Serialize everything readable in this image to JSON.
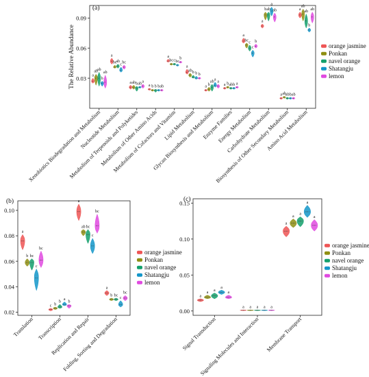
{
  "colors": {
    "orange jasmine": "#ee5555",
    "Ponkan": "#8f8f12",
    "navel orange": "#13a06c",
    "Shatangju": "#1396c9",
    "lemon": "#e04ae0"
  },
  "chart_data": [
    {
      "id": "a",
      "panel_label": "(a)",
      "type": "violin",
      "ylabel": "The Relative Abundance",
      "ylim": [
        0.0,
        0.1025
      ],
      "yticks": [
        "0.03",
        "0.06",
        "0.09"
      ],
      "ytick_values": [
        0.03,
        0.06,
        0.09
      ],
      "legend": [
        "orange jasmine",
        "Ponkan",
        "navel orange",
        "Shatangju",
        "lemon"
      ],
      "legend_position": "right",
      "categories": [
        "Xenobiotics Biodegradation and Metabolism",
        "Nucleotide Metabolism",
        "Metabolism of Terpenoids and Polyketides",
        "Metabolism of Other Amino Acids",
        "Metabolism of Cofactors and Vitamins",
        "Lipid Metabolism",
        "Glycan Biosynthesis and Metabolism",
        "Enzyme Families",
        "Energy Metabolism",
        "Carbohydrate Metabolism",
        "Biosynthesis of Other Secondary Metabolism",
        "Amino Acid Metabolism"
      ],
      "series": [
        {
          "name": "orange jasmine",
          "values": [
            0.027,
            0.047,
            0.021,
            0.019,
            0.047,
            0.036,
            0.018,
            0.02,
            0.067,
            0.082,
            0.01,
            0.093
          ],
          "ranges": [
            [
              0.025,
              0.03
            ],
            [
              0.044,
              0.05
            ],
            [
              0.019,
              0.023
            ],
            [
              0.018,
              0.02
            ],
            [
              0.046,
              0.049
            ],
            [
              0.034,
              0.039
            ],
            [
              0.017,
              0.019
            ],
            [
              0.019,
              0.021
            ],
            [
              0.065,
              0.07
            ],
            [
              0.08,
              0.084
            ],
            [
              0.009,
              0.011
            ],
            [
              0.09,
              0.096
            ]
          ],
          "letters": [
            "a",
            "a",
            "a",
            "a",
            "a",
            "a",
            "a",
            "a",
            "a",
            "a",
            "a",
            "a"
          ]
        },
        {
          "name": "Ponkan",
          "values": [
            0.03,
            0.041,
            0.021,
            0.018,
            0.044,
            0.033,
            0.019,
            0.021,
            0.063,
            0.093,
            0.011,
            0.094
          ],
          "ranges": [
            [
              0.023,
              0.034
            ],
            [
              0.04,
              0.043
            ],
            [
              0.019,
              0.023
            ],
            [
              0.017,
              0.019
            ],
            [
              0.043,
              0.045
            ],
            [
              0.031,
              0.035
            ],
            [
              0.017,
              0.021
            ],
            [
              0.02,
              0.022
            ],
            [
              0.06,
              0.065
            ],
            [
              0.088,
              0.096
            ],
            [
              0.01,
              0.012
            ],
            [
              0.087,
              0.099
            ]
          ],
          "letters": [
            "ab",
            "bc",
            "ab",
            "b",
            "bc",
            "ab",
            "b",
            "b",
            "bc",
            "b",
            "ab",
            "ab"
          ]
        },
        {
          "name": "navel orange",
          "values": [
            0.03,
            0.042,
            0.02,
            0.018,
            0.044,
            0.031,
            0.021,
            0.02,
            0.06,
            0.093,
            0.01,
            0.087
          ],
          "ranges": [
            [
              0.022,
              0.036
            ],
            [
              0.04,
              0.044
            ],
            [
              0.017,
              0.022
            ],
            [
              0.016,
              0.019
            ],
            [
              0.043,
              0.045
            ],
            [
              0.03,
              0.033
            ],
            [
              0.017,
              0.024
            ],
            [
              0.019,
              0.021
            ],
            [
              0.057,
              0.063
            ],
            [
              0.087,
              0.096
            ],
            [
              0.009,
              0.011
            ],
            [
              0.08,
              0.094
            ]
          ],
          "letters": [
            "ab",
            "ab",
            "b",
            "b",
            "c",
            "b",
            "ab",
            "ab",
            "c",
            "ab",
            "ab",
            "ab"
          ]
        },
        {
          "name": "Shatangju",
          "values": [
            0.025,
            0.038,
            0.021,
            0.018,
            0.043,
            0.03,
            0.023,
            0.02,
            0.055,
            0.097,
            0.01,
            0.078
          ],
          "ranges": [
            [
              0.022,
              0.027
            ],
            [
              0.036,
              0.041
            ],
            [
              0.02,
              0.022
            ],
            [
              0.017,
              0.019
            ],
            [
              0.042,
              0.044
            ],
            [
              0.029,
              0.032
            ],
            [
              0.021,
              0.026
            ],
            [
              0.019,
              0.021
            ],
            [
              0.051,
              0.058
            ],
            [
              0.092,
              0.101
            ],
            [
              0.009,
              0.011
            ],
            [
              0.076,
              0.08
            ]
          ],
          "letters": [
            "b",
            "c",
            "ab",
            "b",
            "bc",
            "b",
            "a",
            "b",
            "c",
            "a",
            "b",
            "b"
          ]
        },
        {
          "name": "lemon",
          "values": [
            0.026,
            0.041,
            0.022,
            0.018,
            0.046,
            0.03,
            0.022,
            0.021,
            0.062,
            0.091,
            0.01,
            0.091
          ],
          "ranges": [
            [
              0.02,
              0.033
            ],
            [
              0.039,
              0.043
            ],
            [
              0.02,
              0.024
            ],
            [
              0.017,
              0.019
            ],
            [
              0.045,
              0.047
            ],
            [
              0.029,
              0.031
            ],
            [
              0.02,
              0.024
            ],
            [
              0.02,
              0.022
            ],
            [
              0.06,
              0.064
            ],
            [
              0.086,
              0.095
            ],
            [
              0.009,
              0.011
            ],
            [
              0.085,
              0.096
            ]
          ],
          "letters": [
            "ab",
            "bc",
            "a",
            "ab",
            "b",
            "b",
            "a",
            "a",
            "b",
            "ab",
            "ab",
            "ab"
          ]
        }
      ]
    },
    {
      "id": "b",
      "panel_label": "(b)",
      "type": "violin",
      "ylim": [
        0.0175,
        0.1075
      ],
      "yticks": [
        "0.02",
        "0.04",
        "0.06",
        "0.08",
        "0.10"
      ],
      "ytick_values": [
        0.02,
        0.04,
        0.06,
        0.08,
        0.1
      ],
      "legend": [
        "orange jasmine",
        "Ponkan",
        "navel orange",
        "Shatangju",
        "lemon"
      ],
      "legend_position": "right",
      "categories": [
        "Translation",
        "Transcription",
        "Replication and Repair",
        "Folding, Sorting and Degradation"
      ],
      "series": [
        {
          "name": "orange jasmine",
          "values": [
            0.076,
            0.022,
            0.099,
            0.035
          ],
          "ranges": [
            [
              0.069,
              0.081
            ],
            [
              0.021,
              0.023
            ],
            [
              0.092,
              0.105
            ],
            [
              0.033,
              0.037
            ]
          ],
          "letters": [
            "a",
            "c",
            "a",
            "a"
          ]
        },
        {
          "name": "Ponkan",
          "values": [
            0.059,
            0.023,
            0.083,
            0.03
          ],
          "ranges": [
            [
              0.056,
              0.062
            ],
            [
              0.022,
              0.024
            ],
            [
              0.08,
              0.085
            ],
            [
              0.029,
              0.031
            ]
          ],
          "letters": [
            "b",
            "b",
            "ab",
            "b"
          ]
        },
        {
          "name": "navel orange",
          "values": [
            0.059,
            0.024,
            0.081,
            0.03
          ],
          "ranges": [
            [
              0.053,
              0.062
            ],
            [
              0.023,
              0.026
            ],
            [
              0.074,
              0.085
            ],
            [
              0.029,
              0.031
            ]
          ],
          "letters": [
            "bc",
            "b",
            "bc",
            "bc"
          ]
        },
        {
          "name": "Shatangju",
          "values": [
            0.047,
            0.026,
            0.072,
            0.026
          ],
          "ranges": [
            [
              0.037,
              0.054
            ],
            [
              0.025,
              0.028
            ],
            [
              0.066,
              0.078
            ],
            [
              0.024,
              0.029
            ]
          ],
          "letters": [
            "c",
            "a",
            "c",
            "c"
          ]
        },
        {
          "name": "lemon",
          "values": [
            0.061,
            0.025,
            0.088,
            0.031
          ],
          "ranges": [
            [
              0.055,
              0.068
            ],
            [
              0.023,
              0.026
            ],
            [
              0.082,
              0.097
            ],
            [
              0.029,
              0.033
            ]
          ],
          "letters": [
            "bc",
            "b",
            "bc",
            "bc"
          ]
        }
      ]
    },
    {
      "id": "c",
      "panel_label": "(c)",
      "type": "violin",
      "ylim": [
        -0.006,
        0.156
      ],
      "yticks": [
        "0.00",
        "0.05",
        "0.10",
        "0.15"
      ],
      "ytick_values": [
        0.0,
        0.05,
        0.1,
        0.15
      ],
      "legend": [
        "orange jasmine",
        "Ponkan",
        "navel orange",
        "Shatangju",
        "lemon"
      ],
      "legend_position": "right",
      "categories": [
        "Signal Transduction",
        "Signaling Molecules and Interaction",
        "Membrane Transport"
      ],
      "series": [
        {
          "name": "orange jasmine",
          "values": [
            0.015,
            0.001,
            0.111
          ],
          "ranges": [
            [
              0.013,
              0.017
            ],
            [
              0.0005,
              0.0015
            ],
            [
              0.103,
              0.118
            ]
          ],
          "letters": [
            "a",
            "a",
            "a"
          ]
        },
        {
          "name": "Ponkan",
          "values": [
            0.019,
            0.001,
            0.122
          ],
          "ranges": [
            [
              0.017,
              0.022
            ],
            [
              0.0005,
              0.0015
            ],
            [
              0.116,
              0.128
            ]
          ],
          "letters": [
            "a",
            "a",
            "a"
          ]
        },
        {
          "name": "navel orange",
          "values": [
            0.021,
            0.001,
            0.125
          ],
          "ranges": [
            [
              0.017,
              0.025
            ],
            [
              0.0005,
              0.0015
            ],
            [
              0.117,
              0.131
            ]
          ],
          "letters": [
            "a",
            "a",
            "a"
          ]
        },
        {
          "name": "Shatangju",
          "values": [
            0.026,
            0.001,
            0.138
          ],
          "ranges": [
            [
              0.023,
              0.029
            ],
            [
              0.0005,
              0.0015
            ],
            [
              0.13,
              0.147
            ]
          ],
          "letters": [
            "a",
            "a",
            "a"
          ]
        },
        {
          "name": "lemon",
          "values": [
            0.019,
            0.001,
            0.119
          ],
          "ranges": [
            [
              0.017,
              0.022
            ],
            [
              0.0005,
              0.0015
            ],
            [
              0.111,
              0.127
            ]
          ],
          "letters": [
            "a",
            "a",
            "a"
          ]
        }
      ]
    }
  ]
}
